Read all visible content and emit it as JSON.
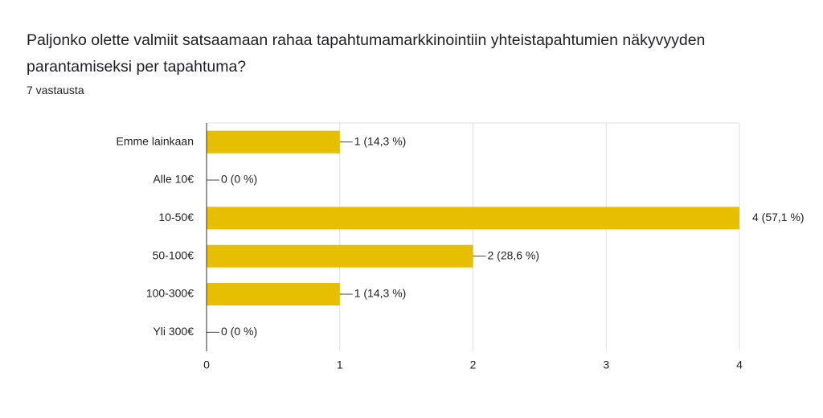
{
  "chart_data": {
    "type": "bar",
    "orientation": "horizontal",
    "title": "Paljonko olette valmiit satsaamaan rahaa tapahtumamarkkinointiin yhteistapahtumien näkyvyyden parantamiseksi per tapahtuma?",
    "subtitle": "7 vastausta",
    "categories": [
      "Emme lainkaan",
      "Alle 10€",
      "10-50€",
      "50-100€",
      "100-300€",
      "Yli 300€"
    ],
    "values": [
      1,
      0,
      4,
      2,
      1,
      0
    ],
    "value_labels": [
      "1 (14,3 %)",
      "0 (0 %)",
      "4 (57,1 %)",
      "2 (28,6 %)",
      "1 (14,3 %)",
      "0 (0 %)"
    ],
    "color": "#e6bf00",
    "xlim": [
      0,
      4
    ],
    "xticks": [
      0,
      1,
      2,
      3,
      4
    ],
    "grid": true
  }
}
